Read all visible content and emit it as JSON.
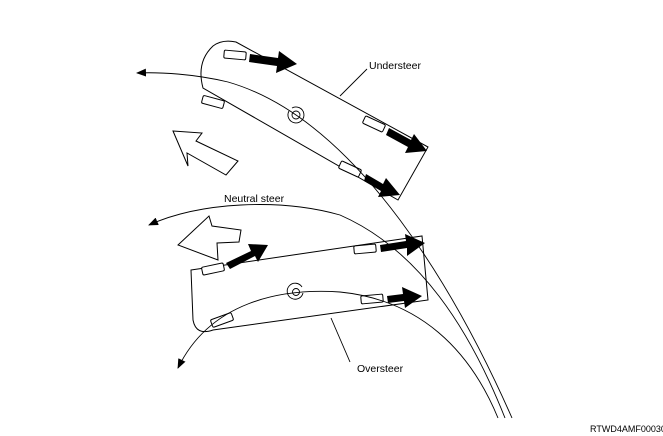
{
  "labels": {
    "understeer": "Understeer",
    "neutral": "Neutral steer",
    "oversteer": "Oversteer"
  },
  "figure_code": "RTWD4AMF000301"
}
